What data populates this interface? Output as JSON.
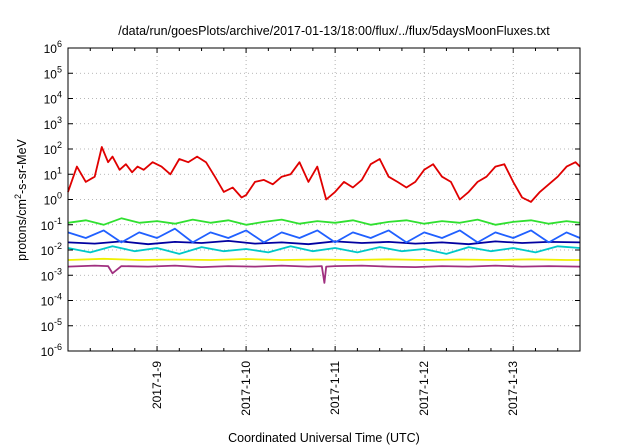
{
  "chart_data": {
    "type": "line",
    "title": "/data/run/goesPlots/archive/2017-01-13/18:00/flux/../flux/5daysMoonFluxes.txt",
    "xlabel": "Coordinated Universal Time (UTC)",
    "ylabel": "protons/cm^2-s-sr-MeV",
    "y_scale": "log",
    "ylim_exp": [
      -6,
      6
    ],
    "y_ticks": [
      {
        "base": "10",
        "exp": "-6"
      },
      {
        "base": "10",
        "exp": "-5"
      },
      {
        "base": "10",
        "exp": "-4"
      },
      {
        "base": "10",
        "exp": "-3"
      },
      {
        "base": "10",
        "exp": "-2"
      },
      {
        "base": "10",
        "exp": "-1"
      },
      {
        "base": "10",
        "exp": "0"
      },
      {
        "base": "10",
        "exp": "1"
      },
      {
        "base": "10",
        "exp": "2"
      },
      {
        "base": "10",
        "exp": "3"
      },
      {
        "base": "10",
        "exp": "4"
      },
      {
        "base": "10",
        "exp": "5"
      },
      {
        "base": "10",
        "exp": "6"
      }
    ],
    "xlim": [
      "2017-01-08 00:00",
      "2017-01-13 18:00"
    ],
    "x_ticks": [
      "2017-1-9",
      "2017-1-10",
      "2017-1-11",
      "2017-1-12",
      "2017-1-13"
    ],
    "grid": true,
    "x_units": "days after 2017-01-08 00:00 UTC",
    "series": [
      {
        "color": "#e00000",
        "x": [
          0.0,
          0.1,
          0.2,
          0.3,
          0.38,
          0.45,
          0.5,
          0.58,
          0.65,
          0.72,
          0.78,
          0.85,
          0.95,
          1.05,
          1.15,
          1.25,
          1.35,
          1.45,
          1.55,
          1.65,
          1.75,
          1.85,
          1.95,
          2.0,
          2.1,
          2.2,
          2.3,
          2.4,
          2.5,
          2.6,
          2.7,
          2.8,
          2.9,
          3.0,
          3.1,
          3.2,
          3.3,
          3.4,
          3.5,
          3.6,
          3.7,
          3.8,
          3.9,
          4.0,
          4.1,
          4.2,
          4.3,
          4.4,
          4.5,
          4.6,
          4.7,
          4.8,
          4.9,
          5.0,
          5.1,
          5.2,
          5.3,
          5.4,
          5.5,
          5.6,
          5.7,
          5.75
        ],
        "y": [
          2,
          20,
          5,
          8,
          120,
          30,
          50,
          15,
          25,
          12,
          20,
          15,
          30,
          20,
          10,
          40,
          30,
          50,
          30,
          8,
          2,
          3,
          1.2,
          1.5,
          5,
          6,
          4,
          8,
          10,
          30,
          5,
          20,
          1.0,
          2,
          5,
          3,
          6,
          25,
          40,
          8,
          5,
          3,
          5,
          15,
          25,
          8,
          5,
          1.0,
          2,
          5,
          8,
          20,
          25,
          5,
          1.2,
          0.8,
          2,
          4,
          8,
          20,
          30,
          20
        ]
      },
      {
        "color": "#30e030",
        "x": [
          0.0,
          0.2,
          0.4,
          0.6,
          0.8,
          1.0,
          1.2,
          1.4,
          1.6,
          1.8,
          2.0,
          2.2,
          2.4,
          2.6,
          2.8,
          3.0,
          3.2,
          3.4,
          3.6,
          3.8,
          4.0,
          4.2,
          4.4,
          4.6,
          4.8,
          5.0,
          5.2,
          5.4,
          5.6,
          5.75
        ],
        "y": [
          0.12,
          0.15,
          0.1,
          0.18,
          0.12,
          0.14,
          0.11,
          0.16,
          0.12,
          0.15,
          0.1,
          0.13,
          0.16,
          0.11,
          0.14,
          0.12,
          0.15,
          0.1,
          0.13,
          0.15,
          0.11,
          0.14,
          0.12,
          0.16,
          0.1,
          0.13,
          0.15,
          0.11,
          0.14,
          0.12
        ]
      },
      {
        "color": "#2060ff",
        "x": [
          0.0,
          0.2,
          0.4,
          0.6,
          0.8,
          1.0,
          1.2,
          1.4,
          1.6,
          1.8,
          2.0,
          2.2,
          2.4,
          2.6,
          2.8,
          3.0,
          3.2,
          3.4,
          3.6,
          3.8,
          4.0,
          4.2,
          4.4,
          4.6,
          4.8,
          5.0,
          5.2,
          5.4,
          5.6,
          5.75
        ],
        "y": [
          0.05,
          0.03,
          0.06,
          0.02,
          0.05,
          0.03,
          0.07,
          0.02,
          0.05,
          0.03,
          0.06,
          0.02,
          0.05,
          0.03,
          0.06,
          0.02,
          0.05,
          0.03,
          0.06,
          0.02,
          0.05,
          0.03,
          0.06,
          0.02,
          0.05,
          0.03,
          0.06,
          0.02,
          0.05,
          0.03
        ]
      },
      {
        "color": "#0000a0",
        "x": [
          0.0,
          0.3,
          0.6,
          0.9,
          1.2,
          1.5,
          1.8,
          2.1,
          2.4,
          2.7,
          3.0,
          3.3,
          3.6,
          3.9,
          4.2,
          4.5,
          4.8,
          5.1,
          5.4,
          5.75
        ],
        "y": [
          0.02,
          0.018,
          0.022,
          0.017,
          0.021,
          0.019,
          0.023,
          0.018,
          0.02,
          0.017,
          0.022,
          0.019,
          0.021,
          0.018,
          0.02,
          0.017,
          0.022,
          0.019,
          0.021,
          0.02
        ]
      },
      {
        "color": "#00c8c8",
        "x": [
          0.0,
          0.25,
          0.5,
          0.75,
          1.0,
          1.25,
          1.5,
          1.75,
          2.0,
          2.25,
          2.5,
          2.75,
          3.0,
          3.25,
          3.5,
          3.75,
          4.0,
          4.25,
          4.5,
          4.75,
          5.0,
          5.25,
          5.5,
          5.75
        ],
        "y": [
          0.012,
          0.008,
          0.014,
          0.009,
          0.012,
          0.007,
          0.013,
          0.009,
          0.011,
          0.008,
          0.014,
          0.009,
          0.012,
          0.008,
          0.013,
          0.009,
          0.011,
          0.007,
          0.013,
          0.009,
          0.012,
          0.008,
          0.014,
          0.012
        ]
      },
      {
        "color": "#f0f000",
        "x": [
          0.0,
          0.4,
          0.8,
          1.2,
          1.6,
          2.0,
          2.4,
          2.8,
          3.2,
          3.6,
          4.0,
          4.4,
          4.8,
          5.2,
          5.6,
          5.75
        ],
        "y": [
          0.004,
          0.0045,
          0.004,
          0.0042,
          0.004,
          0.0044,
          0.004,
          0.0042,
          0.004,
          0.0043,
          0.004,
          0.0042,
          0.004,
          0.0043,
          0.004,
          0.004
        ]
      },
      {
        "color": "#a03080",
        "x": [
          0.0,
          0.3,
          0.45,
          0.5,
          0.6,
          0.9,
          1.2,
          1.5,
          1.8,
          2.1,
          2.4,
          2.7,
          2.85,
          2.88,
          2.9,
          3.0,
          3.3,
          3.6,
          3.9,
          4.2,
          4.5,
          4.8,
          5.1,
          5.4,
          5.75
        ],
        "y": [
          0.0022,
          0.0024,
          0.0023,
          0.0012,
          0.0023,
          0.0022,
          0.0024,
          0.0021,
          0.0023,
          0.0022,
          0.0024,
          0.0022,
          0.0023,
          0.0005,
          0.0022,
          0.0023,
          0.0024,
          0.0022,
          0.0021,
          0.0023,
          0.0022,
          0.0024,
          0.0022,
          0.0023,
          0.0022
        ]
      }
    ]
  }
}
